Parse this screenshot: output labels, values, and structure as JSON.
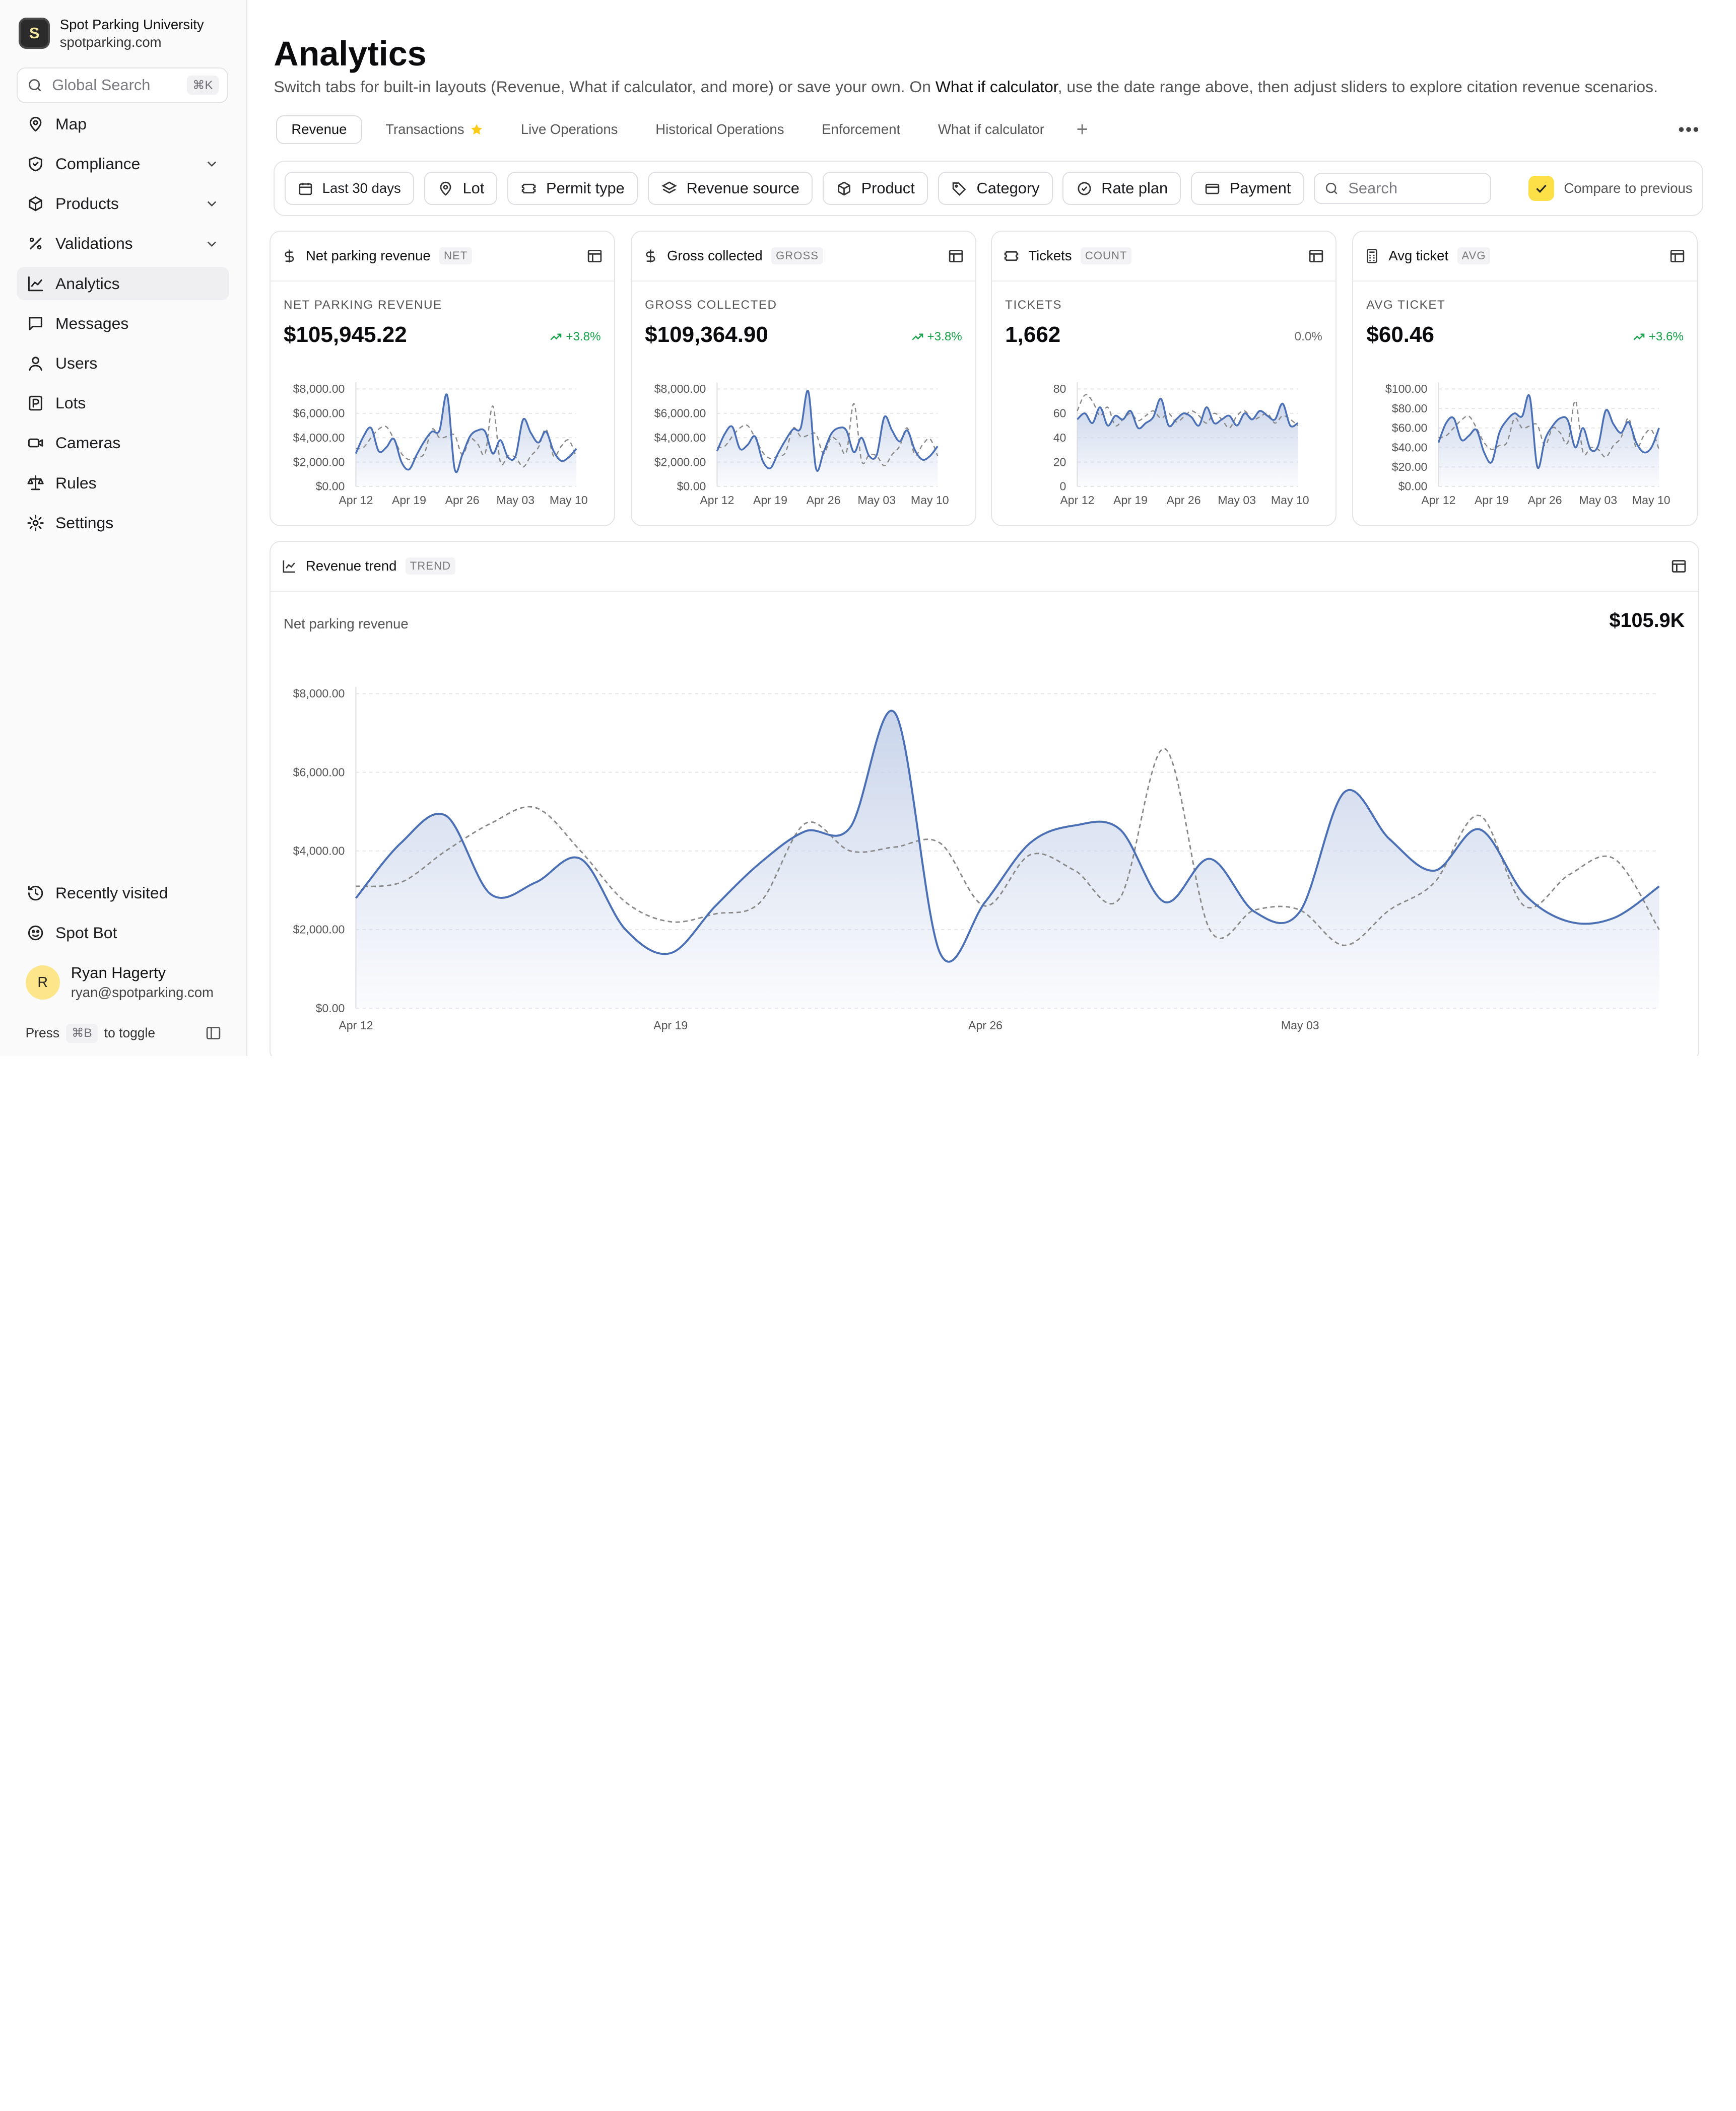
{
  "org": {
    "name": "Spot Parking University",
    "domain": "spotparking.com",
    "logo_letter": "S"
  },
  "search": {
    "placeholder": "Global Search",
    "shortcut": "⌘K"
  },
  "nav": [
    {
      "label": "Map",
      "icon": "map-pin-icon",
      "expandable": false
    },
    {
      "label": "Compliance",
      "icon": "shield-icon",
      "expandable": true
    },
    {
      "label": "Products",
      "icon": "box-icon",
      "expandable": true
    },
    {
      "label": "Validations",
      "icon": "percent-icon",
      "expandable": true
    },
    {
      "label": "Analytics",
      "icon": "line-chart-icon",
      "expandable": false,
      "active": true
    },
    {
      "label": "Messages",
      "icon": "message-icon",
      "expandable": false
    },
    {
      "label": "Users",
      "icon": "user-icon",
      "expandable": false
    },
    {
      "label": "Lots",
      "icon": "parking-icon",
      "expandable": false
    },
    {
      "label": "Cameras",
      "icon": "camera-icon",
      "expandable": false
    },
    {
      "label": "Rules",
      "icon": "scale-icon",
      "expandable": false
    },
    {
      "label": "Settings",
      "icon": "gear-icon",
      "expandable": false
    }
  ],
  "nav_bottom": [
    {
      "label": "Recently visited",
      "icon": "history-icon"
    },
    {
      "label": "Spot Bot",
      "icon": "bot-icon"
    }
  ],
  "user": {
    "initial": "R",
    "name": "Ryan Hagerty",
    "email": "ryan@spotparking.com"
  },
  "sidebar_toggle": {
    "prefix": "Press",
    "key": "⌘B",
    "suffix": "to toggle"
  },
  "page": {
    "title": "Analytics",
    "desc_1": "Switch tabs for built-in layouts (Revenue, What if calculator, and more) or save your own. On ",
    "desc_bold": "What if calculator",
    "desc_2": ", use the date range above, then adjust sliders to explore citation revenue scenarios."
  },
  "tabs": [
    {
      "label": "Revenue",
      "active": true
    },
    {
      "label": "Transactions",
      "starred": true
    },
    {
      "label": "Live Operations"
    },
    {
      "label": "Historical Operations"
    },
    {
      "label": "Enforcement"
    },
    {
      "label": "What if calculator"
    }
  ],
  "filters": {
    "date": "Last 30 days",
    "lot": "Lot",
    "permit": "Permit type",
    "revenue_source": "Revenue source",
    "product": "Product",
    "category": "Category",
    "rate_plan": "Rate plan",
    "payment": "Payment",
    "search_placeholder": "Search",
    "compare": "Compare to previous"
  },
  "x_ticks": [
    "Apr 12",
    "Apr 19",
    "Apr 26",
    "May 03",
    "May 10"
  ],
  "cards": [
    {
      "title": "Net parking revenue",
      "badge": "NET",
      "label": "NET PARKING REVENUE",
      "value": "$105,945.22",
      "delta": "+3.8%",
      "trend": "up",
      "y_ticks": [
        "$8,000.00",
        "$6,000.00",
        "$4,000.00",
        "$2,000.00",
        "$0.00"
      ]
    },
    {
      "title": "Gross collected",
      "badge": "GROSS",
      "label": "GROSS COLLECTED",
      "value": "$109,364.90",
      "delta": "+3.8%",
      "trend": "up",
      "y_ticks": [
        "$8,000.00",
        "$6,000.00",
        "$4,000.00",
        "$2,000.00",
        "$0.00"
      ]
    },
    {
      "title": "Tickets",
      "badge": "COUNT",
      "label": "TICKETS",
      "value": "1,662",
      "delta": "0.0%",
      "trend": "flat",
      "y_ticks": [
        "80",
        "60",
        "40",
        "20",
        "0"
      ]
    },
    {
      "title": "Avg ticket",
      "badge": "AVG",
      "label": "AVG TICKET",
      "value": "$60.46",
      "delta": "+3.6%",
      "trend": "up",
      "y_ticks": [
        "$100.00",
        "$80.00",
        "$60.00",
        "$40.00",
        "$20.00",
        "$0.00"
      ]
    }
  ],
  "trend": {
    "title": "Revenue trend",
    "badge": "TREND",
    "subtitle": "Net parking revenue",
    "total": "$105.9K"
  },
  "colors": {
    "series": "#4a6fb5",
    "fill": "#c7d3ea",
    "previous": "#888888",
    "gain": "#16a34a",
    "checkbox": "#fde047"
  },
  "chart_data": [
    {
      "type": "area",
      "title": "Net parking revenue",
      "x_ticks": [
        "Apr 12",
        "Apr 19",
        "Apr 26",
        "May 03",
        "May 10"
      ],
      "ylim": [
        0,
        8000
      ],
      "grid": true,
      "series": [
        {
          "name": "current",
          "values": [
            2700,
            4100,
            4800,
            2900,
            3200,
            3900,
            2000,
            1400,
            2600,
            3700,
            4500,
            4600,
            7500,
            1400,
            2600,
            4100,
            4600,
            4500,
            2700,
            3800,
            2400,
            2500,
            5500,
            4400,
            3600,
            4500,
            2900,
            2100,
            2400,
            3100
          ]
        },
        {
          "name": "previous",
          "values": [
            3100,
            3200,
            4000,
            4700,
            4900,
            3900,
            2700,
            2200,
            2400,
            2700,
            4700,
            4000,
            4100,
            4200,
            2600,
            3900,
            3500,
            2700,
            6600,
            2000,
            2500,
            2400,
            1600,
            2500,
            3200,
            4700,
            2500,
            3300,
            3800,
            2400
          ]
        }
      ]
    },
    {
      "type": "area",
      "title": "Gross collected",
      "x_ticks": [
        "Apr 12",
        "Apr 19",
        "Apr 26",
        "May 03",
        "May 10"
      ],
      "ylim": [
        0,
        8000
      ],
      "grid": true,
      "series": [
        {
          "name": "current",
          "values": [
            2900,
            4300,
            4900,
            3100,
            3400,
            4100,
            2100,
            1500,
            2700,
            3800,
            4700,
            4800,
            7800,
            1500,
            2800,
            4300,
            4800,
            4600,
            2800,
            4000,
            2500,
            2600,
            5700,
            4600,
            3700,
            4600,
            3000,
            2200,
            2500,
            3300
          ]
        },
        {
          "name": "previous",
          "values": [
            3200,
            3300,
            4100,
            4800,
            5000,
            4000,
            2800,
            2300,
            2500,
            2800,
            4800,
            4100,
            4200,
            4300,
            2700,
            4000,
            3600,
            2800,
            6800,
            2100,
            2600,
            2500,
            1700,
            2600,
            3300,
            4800,
            2600,
            3400,
            3900,
            2500
          ]
        }
      ]
    },
    {
      "type": "area",
      "title": "Tickets",
      "x_ticks": [
        "Apr 12",
        "Apr 19",
        "Apr 26",
        "May 03",
        "May 10"
      ],
      "ylim": [
        0,
        80
      ],
      "grid": true,
      "series": [
        {
          "name": "current",
          "values": [
            55,
            60,
            52,
            65,
            50,
            58,
            55,
            62,
            48,
            52,
            57,
            72,
            50,
            55,
            60,
            57,
            50,
            65,
            52,
            55,
            58,
            50,
            60,
            55,
            62,
            58,
            55,
            68,
            50,
            52
          ]
        },
        {
          "name": "previous",
          "values": [
            62,
            75,
            70,
            58,
            65,
            50,
            55,
            60,
            54,
            58,
            62,
            56,
            60,
            53,
            57,
            62,
            58,
            52,
            60,
            55,
            48,
            58,
            62,
            55,
            57,
            60,
            52,
            58,
            55,
            50
          ]
        }
      ]
    },
    {
      "type": "area",
      "title": "Avg ticket",
      "x_ticks": [
        "Apr 12",
        "Apr 19",
        "Apr 26",
        "May 03",
        "May 10"
      ],
      "ylim": [
        0,
        100
      ],
      "grid": true,
      "series": [
        {
          "name": "current",
          "values": [
            45,
            65,
            70,
            48,
            52,
            58,
            35,
            25,
            55,
            68,
            75,
            72,
            92,
            20,
            48,
            62,
            70,
            68,
            40,
            60,
            38,
            42,
            78,
            64,
            55,
            66,
            45,
            35,
            40,
            60
          ]
        },
        {
          "name": "previous",
          "values": [
            50,
            52,
            60,
            68,
            72,
            60,
            45,
            38,
            42,
            45,
            70,
            60,
            62,
            63,
            42,
            60,
            55,
            45,
            88,
            35,
            40,
            38,
            30,
            42,
            50,
            70,
            40,
            52,
            58,
            38
          ]
        }
      ]
    },
    {
      "type": "area",
      "title": "Net parking revenue",
      "x_ticks": [
        "Apr 12",
        "Apr 19",
        "Apr 26",
        "May 03"
      ],
      "ylim": [
        0,
        8000
      ],
      "grid": true,
      "y_ticks": [
        "$8,000.00",
        "$6,000.00",
        "$4,000.00",
        "$2,000.00",
        "$0.00"
      ],
      "series": [
        {
          "name": "current",
          "values": [
            2800,
            4200,
            4900,
            2900,
            3200,
            3800,
            2000,
            1400,
            2600,
            3700,
            4500,
            4600,
            7500,
            1400,
            2700,
            4200,
            4650,
            4550,
            2700,
            3800,
            2450,
            2450,
            5500,
            4300,
            3500,
            4550,
            2900,
            2200,
            2300,
            3100
          ]
        },
        {
          "name": "previous",
          "values": [
            3100,
            3200,
            4000,
            4700,
            5100,
            4000,
            2700,
            2200,
            2400,
            2700,
            4700,
            4000,
            4100,
            4200,
            2600,
            3900,
            3500,
            2800,
            6600,
            2000,
            2500,
            2500,
            1600,
            2500,
            3200,
            4900,
            2600,
            3400,
            3800,
            2000
          ]
        }
      ]
    }
  ]
}
